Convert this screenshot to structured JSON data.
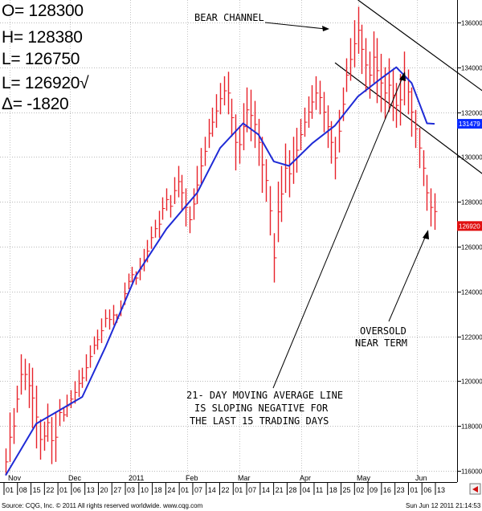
{
  "ohlc_box": {
    "open": "O= 128300",
    "high": "H= 128380",
    "low": "L= 126750",
    "last": "L= 126920√",
    "change": "Δ= -1820"
  },
  "annotations": {
    "bear_channel": "BEAR CHANNEL",
    "oversold_1": "OVERSOLD",
    "oversold_2": "NEAR TERM",
    "ma_1": "21- DAY MOVING AVERAGE LINE",
    "ma_2": "IS SLOPING NEGATIVE FOR",
    "ma_3": "THE LAST 15 TRADING DAYS"
  },
  "footer": {
    "source": "Source: CQG, Inc. © 2011 All rights reserved worldwide. www.cqg.com",
    "timestamp": "Sun Jun 12 2011 21:14:53"
  },
  "chart_data": {
    "type": "ohlc_bar",
    "ylim": [
      115500,
      137000
    ],
    "y_ticks": [
      116000,
      118000,
      120000,
      122000,
      124000,
      126000,
      128000,
      130000,
      132000,
      134000,
      136000
    ],
    "y_tick_labels": [
      "116000",
      "118000",
      "120000",
      "122000",
      "124000",
      "126000",
      "128000",
      "130000",
      "132000",
      "134000",
      "136000"
    ],
    "price_labels": [
      {
        "label": "131479",
        "value": 131479,
        "color": "#0a2cff"
      },
      {
        "label": "126920",
        "value": 126920,
        "color": "#e01010"
      }
    ],
    "months": [
      "Nov",
      "Dec",
      "2011",
      "Feb",
      "Mar",
      "Apr",
      "May",
      "Jun"
    ],
    "day_ticks": [
      "01",
      "08",
      "15",
      "22",
      "01",
      "06",
      "13",
      "20",
      "27",
      "03",
      "10",
      "18",
      "24",
      "01",
      "07",
      "14",
      "22",
      "01",
      "07",
      "14",
      "21",
      "28",
      "04",
      "11",
      "18",
      "25",
      "02",
      "09",
      "16",
      "23",
      "01",
      "06",
      "13"
    ],
    "bar_color": "#e8222a",
    "ma_color": "#1f2bd6",
    "bars": [
      {
        "h": 117000,
        "l": 115800
      },
      {
        "h": 118600,
        "l": 116400
      },
      {
        "h": 118800,
        "l": 117200
      },
      {
        "h": 119800,
        "l": 118600
      },
      {
        "h": 121200,
        "l": 119400
      },
      {
        "h": 121000,
        "l": 119600
      },
      {
        "h": 120800,
        "l": 118800
      },
      {
        "h": 120600,
        "l": 117900
      },
      {
        "h": 119800,
        "l": 117000
      },
      {
        "h": 118300,
        "l": 116500
      },
      {
        "h": 118200,
        "l": 116900
      },
      {
        "h": 119000,
        "l": 117300
      },
      {
        "h": 118400,
        "l": 116300
      },
      {
        "h": 118600,
        "l": 116400
      },
      {
        "h": 119200,
        "l": 118000
      },
      {
        "h": 118800,
        "l": 118200
      },
      {
        "h": 119400,
        "l": 118400
      },
      {
        "h": 119600,
        "l": 118800
      },
      {
        "h": 120000,
        "l": 119000
      },
      {
        "h": 120500,
        "l": 119300
      },
      {
        "h": 120600,
        "l": 119700
      },
      {
        "h": 121200,
        "l": 120000
      },
      {
        "h": 121600,
        "l": 120600
      },
      {
        "h": 122000,
        "l": 121200
      },
      {
        "h": 122300,
        "l": 121400
      },
      {
        "h": 122800,
        "l": 121700
      },
      {
        "h": 123200,
        "l": 122400
      },
      {
        "h": 123200,
        "l": 122300
      },
      {
        "h": 123400,
        "l": 122500
      },
      {
        "h": 123000,
        "l": 122600
      },
      {
        "h": 123600,
        "l": 122900
      },
      {
        "h": 124400,
        "l": 123400
      },
      {
        "h": 124800,
        "l": 124100
      },
      {
        "h": 125100,
        "l": 124400
      },
      {
        "h": 124900,
        "l": 124300
      },
      {
        "h": 125500,
        "l": 124500
      },
      {
        "h": 125900,
        "l": 124900
      },
      {
        "h": 126300,
        "l": 125300
      },
      {
        "h": 126900,
        "l": 125900
      },
      {
        "h": 127200,
        "l": 126400
      },
      {
        "h": 127600,
        "l": 126400
      },
      {
        "h": 128200,
        "l": 127200
      },
      {
        "h": 128600,
        "l": 127600
      },
      {
        "h": 128300,
        "l": 127300
      },
      {
        "h": 129100,
        "l": 127900
      },
      {
        "h": 129600,
        "l": 128200
      },
      {
        "h": 129200,
        "l": 127600
      },
      {
        "h": 128600,
        "l": 126900
      },
      {
        "h": 127800,
        "l": 126600
      },
      {
        "h": 128600,
        "l": 127200
      },
      {
        "h": 129600,
        "l": 127900
      },
      {
        "h": 130400,
        "l": 128800
      },
      {
        "h": 130900,
        "l": 129600
      },
      {
        "h": 131700,
        "l": 130400
      },
      {
        "h": 132200,
        "l": 130900
      },
      {
        "h": 132800,
        "l": 131300
      },
      {
        "h": 133300,
        "l": 131900
      },
      {
        "h": 133600,
        "l": 132300
      },
      {
        "h": 133800,
        "l": 131900
      },
      {
        "h": 132600,
        "l": 130900
      },
      {
        "h": 131900,
        "l": 129400
      },
      {
        "h": 131400,
        "l": 129700
      },
      {
        "h": 132400,
        "l": 130300
      },
      {
        "h": 133100,
        "l": 131100
      },
      {
        "h": 133000,
        "l": 130700
      },
      {
        "h": 132500,
        "l": 130400
      },
      {
        "h": 131700,
        "l": 129600
      },
      {
        "h": 130900,
        "l": 128400
      },
      {
        "h": 129900,
        "l": 128000
      },
      {
        "h": 128700,
        "l": 126500
      },
      {
        "h": 126600,
        "l": 124400
      },
      {
        "h": 128900,
        "l": 126200
      },
      {
        "h": 129600,
        "l": 127100
      },
      {
        "h": 130600,
        "l": 128400
      },
      {
        "h": 130300,
        "l": 128200
      },
      {
        "h": 130900,
        "l": 128800
      },
      {
        "h": 131300,
        "l": 129300
      },
      {
        "h": 131700,
        "l": 130300
      },
      {
        "h": 132200,
        "l": 130900
      },
      {
        "h": 132700,
        "l": 131300
      },
      {
        "h": 133200,
        "l": 131700
      },
      {
        "h": 133600,
        "l": 132100
      },
      {
        "h": 133400,
        "l": 131900
      },
      {
        "h": 132900,
        "l": 131100
      },
      {
        "h": 132300,
        "l": 130400
      },
      {
        "h": 131600,
        "l": 129700
      },
      {
        "h": 130900,
        "l": 129000
      },
      {
        "h": 132100,
        "l": 130200
      },
      {
        "h": 133100,
        "l": 131600
      },
      {
        "h": 134400,
        "l": 132900
      },
      {
        "h": 135300,
        "l": 133400
      },
      {
        "h": 136100,
        "l": 134000
      },
      {
        "h": 136700,
        "l": 134600
      },
      {
        "h": 135900,
        "l": 133700
      },
      {
        "h": 135300,
        "l": 132900
      },
      {
        "h": 134700,
        "l": 132600
      },
      {
        "h": 135600,
        "l": 133300
      },
      {
        "h": 135300,
        "l": 132400
      },
      {
        "h": 134600,
        "l": 132000
      },
      {
        "h": 134000,
        "l": 131700
      },
      {
        "h": 134400,
        "l": 132000
      },
      {
        "h": 133900,
        "l": 131600
      },
      {
        "h": 133300,
        "l": 131300
      },
      {
        "h": 133700,
        "l": 131400
      },
      {
        "h": 134700,
        "l": 132300
      },
      {
        "h": 133900,
        "l": 131900
      },
      {
        "h": 133100,
        "l": 130900
      },
      {
        "h": 132100,
        "l": 130400
      },
      {
        "h": 131300,
        "l": 129500
      },
      {
        "h": 130300,
        "l": 128700
      },
      {
        "h": 129200,
        "l": 127600
      },
      {
        "h": 128600,
        "l": 126900
      },
      {
        "h": 128380,
        "l": 126750
      }
    ],
    "moving_average": [
      {
        "i": 0,
        "v": 115800
      },
      {
        "i": 8,
        "v": 118100
      },
      {
        "i": 14,
        "v": 118700
      },
      {
        "i": 20,
        "v": 119300
      },
      {
        "i": 26,
        "v": 121500
      },
      {
        "i": 34,
        "v": 124700
      },
      {
        "i": 42,
        "v": 126800
      },
      {
        "i": 50,
        "v": 128400
      },
      {
        "i": 56,
        "v": 130400
      },
      {
        "i": 62,
        "v": 131500
      },
      {
        "i": 66,
        "v": 131000
      },
      {
        "i": 70,
        "v": 129800
      },
      {
        "i": 74,
        "v": 129600
      },
      {
        "i": 80,
        "v": 130600
      },
      {
        "i": 86,
        "v": 131400
      },
      {
        "i": 92,
        "v": 132700
      },
      {
        "i": 98,
        "v": 133500
      },
      {
        "i": 102,
        "v": 134000
      },
      {
        "i": 106,
        "v": 133300
      },
      {
        "i": 110,
        "v": 131500
      },
      {
        "i": 112,
        "v": 131479
      }
    ],
    "channel_lines": [
      {
        "x0": 92,
        "y0": 137000,
        "x1": 119,
        "y1": 132900
      },
      {
        "x0": 86,
        "y0": 134200,
        "x1": 119,
        "y1": 129200
      }
    ]
  }
}
